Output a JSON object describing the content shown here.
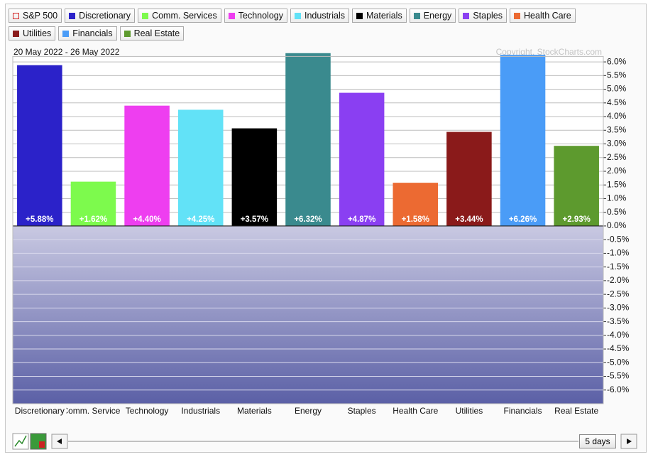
{
  "chart_data": {
    "type": "bar",
    "subtitle": "20 May 2022 - 26 May 2022",
    "annotation": "Copyright, StockCharts.com",
    "benchmark": {
      "name": "S&P 500",
      "color": "#d42a2a"
    },
    "categories": [
      "Discretionary",
      "Comm. Services",
      "Technology",
      "Industrials",
      "Materials",
      "Energy",
      "Staples",
      "Health Care",
      "Utilities",
      "Financials",
      "Real Estate"
    ],
    "values": [
      5.88,
      1.62,
      4.4,
      4.25,
      3.57,
      6.32,
      4.87,
      1.58,
      3.44,
      6.26,
      2.93
    ],
    "value_labels": [
      "+5.88%",
      "+1.62%",
      "+4.40%",
      "+4.25%",
      "+3.57%",
      "+6.32%",
      "+4.87%",
      "+1.58%",
      "+3.44%",
      "+6.26%",
      "+2.93%"
    ],
    "colors": [
      "#2b22c9",
      "#7dfa4d",
      "#ee3ef0",
      "#62e2f7",
      "#000000",
      "#3a8a8e",
      "#8a3ff2",
      "#ec6a32",
      "#8a1a1a",
      "#4a9cf7",
      "#5d9a2e"
    ],
    "ylim": [
      -6.5,
      6.2
    ],
    "yticks": [
      {
        "value": 6,
        "label": "6.0%"
      },
      {
        "value": 5.5,
        "label": "5.5%"
      },
      {
        "value": 5,
        "label": "5.0%"
      },
      {
        "value": 4.5,
        "label": "4.5%"
      },
      {
        "value": 4,
        "label": "4.0%"
      },
      {
        "value": 3.5,
        "label": "3.5%"
      },
      {
        "value": 3,
        "label": "3.0%"
      },
      {
        "value": 2.5,
        "label": "2.5%"
      },
      {
        "value": 2,
        "label": "2.0%"
      },
      {
        "value": 1.5,
        "label": "1.5%"
      },
      {
        "value": 1,
        "label": "1.0%"
      },
      {
        "value": 0.5,
        "label": "0.5%"
      },
      {
        "value": 0,
        "label": "0.0%"
      },
      {
        "value": -0.5,
        "label": "-0.5%"
      },
      {
        "value": -1,
        "label": "-1.0%"
      },
      {
        "value": -1.5,
        "label": "-1.5%"
      },
      {
        "value": -2,
        "label": "-2.0%"
      },
      {
        "value": -2.5,
        "label": "-2.5%"
      },
      {
        "value": -3,
        "label": "-3.0%"
      },
      {
        "value": -3.5,
        "label": "-3.5%"
      },
      {
        "value": -4,
        "label": "-4.0%"
      },
      {
        "value": -4.5,
        "label": "-4.5%"
      },
      {
        "value": -5,
        "label": "-5.0%"
      },
      {
        "value": -5.5,
        "label": "-5.5%"
      },
      {
        "value": -6,
        "label": "-6.0%"
      }
    ],
    "grid": true
  },
  "controls": {
    "period": "5 days"
  }
}
